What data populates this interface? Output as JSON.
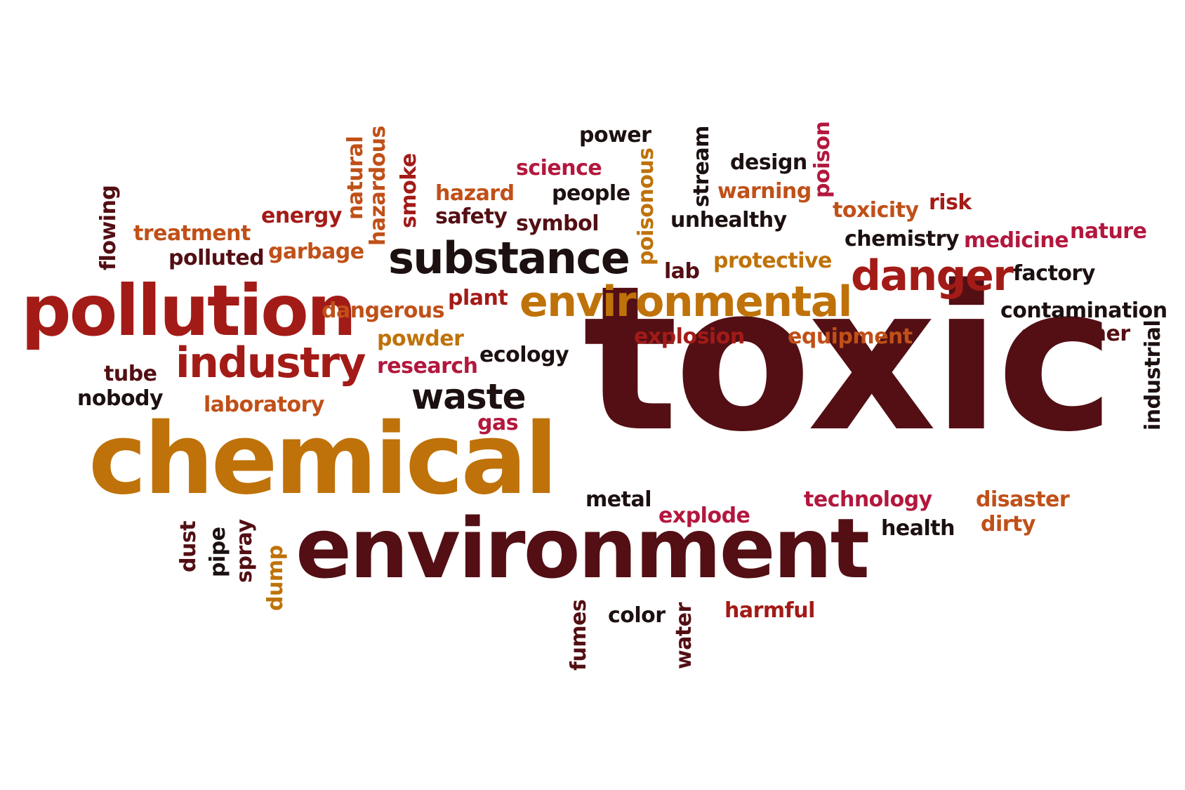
{
  "palette": {
    "dark_maroon": "#530f14",
    "red": "#a31b17",
    "orange": "#bf7209",
    "rust": "#c05018",
    "crimson": "#b3173d",
    "black": "#1c1010"
  },
  "words": {
    "toxic": "toxic",
    "chemical": "chemical",
    "environment": "environment",
    "pollution": "pollution",
    "environmental": "environmental",
    "substance": "substance",
    "industry": "industry",
    "danger": "danger",
    "waste": "waste",
    "power": "power",
    "science": "science",
    "design": "design",
    "warning": "warning",
    "hazard": "hazard",
    "people": "people",
    "toxicity": "toxicity",
    "risk": "risk",
    "energy": "energy",
    "safety": "safety",
    "symbol": "symbol",
    "unhealthy": "unhealthy",
    "treatment": "treatment",
    "chemistry": "chemistry",
    "medicine": "medicine",
    "nature": "nature",
    "polluted": "polluted",
    "garbage": "garbage",
    "lab": "lab",
    "protective": "protective",
    "factory": "factory",
    "plant": "plant",
    "dangerous": "dangerous",
    "contamination": "contamination",
    "explosion": "explosion",
    "equipment": "equipment",
    "container": "container",
    "powder": "powder",
    "ecology": "ecology",
    "research": "research",
    "tube": "tube",
    "nobody": "nobody",
    "laboratory": "laboratory",
    "gas": "gas",
    "metal": "metal",
    "technology": "technology",
    "disaster": "disaster",
    "explode": "explode",
    "health": "health",
    "dirty": "dirty",
    "color": "color",
    "harmful": "harmful",
    "flowing": "flowing",
    "natural": "natural",
    "hazardous": "hazardous",
    "smoke": "smoke",
    "poisonous": "poisonous",
    "stream": "stream",
    "poison": "poison",
    "industrial": "industrial",
    "dust": "dust",
    "pipe": "pipe",
    "spray": "spray",
    "dump": "dump",
    "fumes": "fumes",
    "water": "water"
  }
}
